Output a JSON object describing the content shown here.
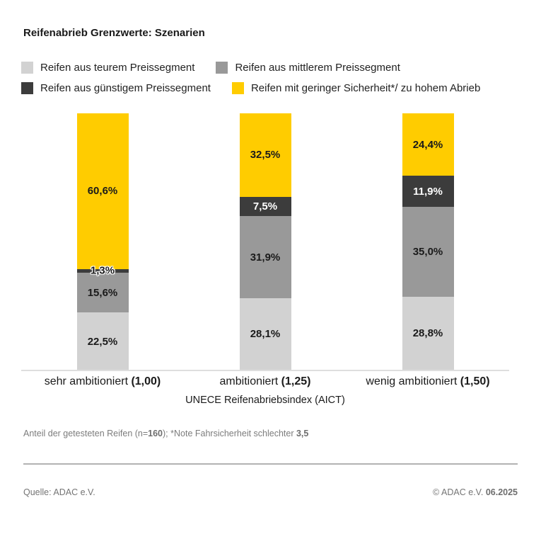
{
  "header": {
    "title": "Reifenabrieb Grenzwerte: Szenarien"
  },
  "colors": {
    "expensive_segment": "#d2d2d2",
    "mid_segment": "#999999",
    "cheap_segment": "#3c3c3c",
    "low_safety": "#ffcc00",
    "text_dark": "#1a1a1a",
    "text_gray": "#7c7c7c"
  },
  "legend": {
    "rows": [
      [
        {
          "label": "Reifen aus teurem Preissegment",
          "color": "#d2d2d2"
        },
        {
          "label": "Reifen aus mittlerem Preissegment",
          "color": "#999999"
        }
      ],
      [
        {
          "label": "Reifen aus günstigem Preissegment",
          "color": "#3c3c3c"
        },
        {
          "label": "Reifen mit geringer Sicherheit*/ zu hohem Abrieb",
          "color": "#ffcc00"
        }
      ]
    ]
  },
  "chart_data": {
    "type": "bar",
    "stacked": true,
    "unit": "%",
    "title": "Reifenabrieb Grenzwerte: Szenarien",
    "categories": [
      "sehr ambitioniert (1,00)",
      "ambitioniert (1,25)",
      "wenig ambitioniert (1,50)"
    ],
    "categories_parts": [
      {
        "text": "sehr ambitioniert ",
        "num": "(1,00)"
      },
      {
        "text": "ambitioniert ",
        "num": "(1,25)"
      },
      {
        "text": "wenig ambitioniert ",
        "num": "(1,50)"
      }
    ],
    "xlabel": "UNECE Reifenabriebsindex (AICT)",
    "ylim": [
      0,
      100
    ],
    "legend_position": "top",
    "grid": false,
    "series": [
      {
        "name": "Reifen aus teurem Preissegment",
        "color": "#d2d2d2",
        "label_color": "#1a1a1a",
        "values": [
          22.5,
          28.1,
          28.8
        ],
        "labels": [
          "22,5%",
          "28,1%",
          "28,8%"
        ]
      },
      {
        "name": "Reifen aus mittlerem Preissegment",
        "color": "#999999",
        "label_color": "#1a1a1a",
        "values": [
          15.6,
          31.9,
          35.0
        ],
        "labels": [
          "15,6%",
          "31,9%",
          "35,0%"
        ]
      },
      {
        "name": "Reifen aus günstigem Preissegment",
        "color": "#3c3c3c",
        "label_color": "#ffffff",
        "values": [
          1.3,
          7.5,
          11.9
        ],
        "labels": [
          "1,3%",
          "7,5%",
          "11,9%"
        ]
      },
      {
        "name": "Reifen mit geringer Sicherheit*/ zu hohem Abrieb",
        "color": "#ffcc00",
        "label_color": "#1a1a1a",
        "values": [
          60.6,
          32.5,
          24.4
        ],
        "labels": [
          "60,6%",
          "32,5%",
          "24,4%"
        ]
      }
    ],
    "thin_segment_label_note": "1,3% label drawn with white halo over segment boundary"
  },
  "footnote": {
    "part1": "Anteil der getesteten Reifen (n=",
    "bold1": "160",
    "part2": "); *Note Fahrsicherheit schlechter ",
    "bold2": "3,5"
  },
  "footer": {
    "source": "Quelle: ADAC e.V.",
    "copyright_prefix": "© ADAC e.V. ",
    "copyright_date": "06.2025"
  }
}
